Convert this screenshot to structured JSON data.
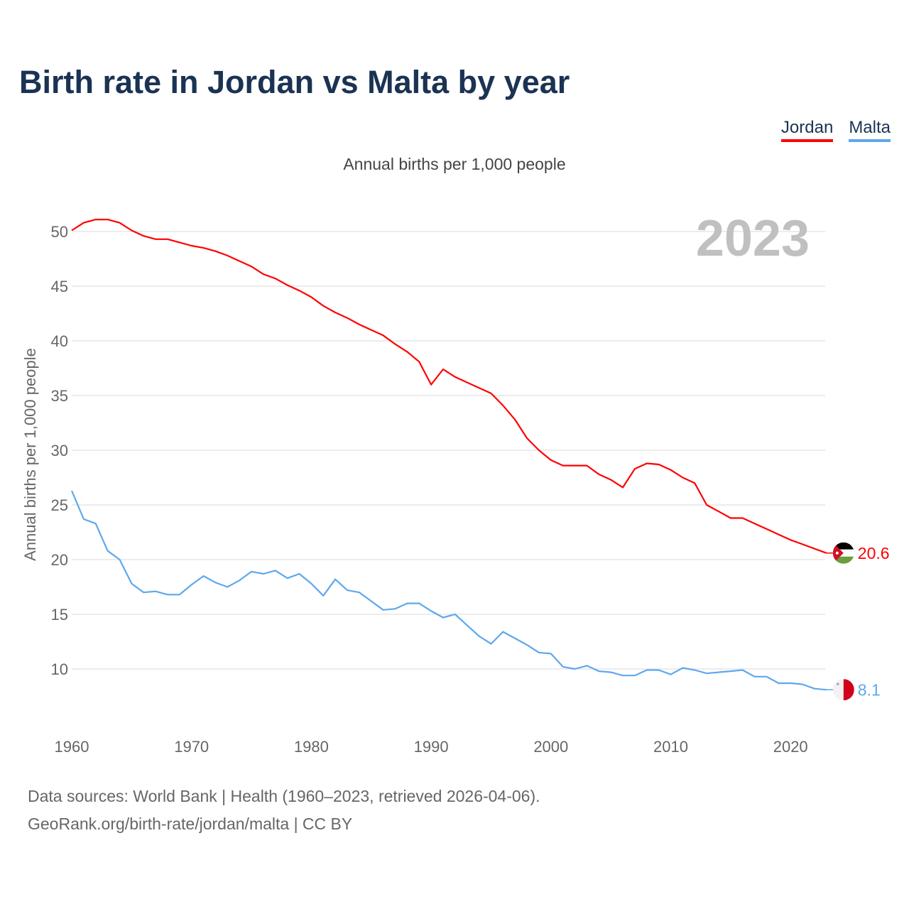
{
  "chart_data": {
    "type": "line",
    "title": "Birth rate in Jordan vs Malta by year",
    "subtitle": "Annual births per 1,000 people",
    "ylabel": "Annual births per 1,000 people",
    "xlabel": "",
    "year_label": "2023",
    "xlim": [
      1960,
      2023
    ],
    "ylim": [
      5,
      52
    ],
    "yticks": [
      10,
      15,
      20,
      25,
      30,
      35,
      40,
      45,
      50
    ],
    "xticks": [
      1960,
      1970,
      1980,
      1990,
      2000,
      2010,
      2020
    ],
    "grid": true,
    "legend_position": "top-right",
    "x": [
      1960,
      1961,
      1962,
      1963,
      1964,
      1965,
      1966,
      1967,
      1968,
      1969,
      1970,
      1971,
      1972,
      1973,
      1974,
      1975,
      1976,
      1977,
      1978,
      1979,
      1980,
      1981,
      1982,
      1983,
      1984,
      1985,
      1986,
      1987,
      1988,
      1989,
      1990,
      1991,
      1992,
      1993,
      1994,
      1995,
      1996,
      1997,
      1998,
      1999,
      2000,
      2001,
      2002,
      2003,
      2004,
      2005,
      2006,
      2007,
      2008,
      2009,
      2010,
      2011,
      2012,
      2013,
      2014,
      2015,
      2016,
      2017,
      2018,
      2019,
      2020,
      2021,
      2022,
      2023
    ],
    "series": [
      {
        "name": "Jordan",
        "color": "#ff0000",
        "end_label": "20.6",
        "values": [
          50.1,
          50.8,
          51.1,
          51.1,
          50.8,
          50.1,
          49.6,
          49.3,
          49.3,
          49.0,
          48.7,
          48.5,
          48.2,
          47.8,
          47.3,
          46.8,
          46.1,
          45.7,
          45.1,
          44.6,
          44.0,
          43.2,
          42.6,
          42.1,
          41.5,
          41.0,
          40.5,
          39.7,
          39.0,
          38.1,
          36.0,
          37.4,
          36.7,
          36.2,
          35.7,
          35.2,
          34.1,
          32.8,
          31.1,
          30.0,
          29.1,
          28.6,
          28.6,
          28.6,
          27.8,
          27.3,
          26.6,
          28.3,
          28.8,
          28.7,
          28.2,
          27.5,
          27.0,
          25.0,
          24.4,
          23.8,
          23.8,
          23.3,
          22.8,
          22.3,
          21.8,
          21.4,
          21.0,
          20.6
        ]
      },
      {
        "name": "Malta",
        "color": "#5ea8ec",
        "end_label": "8.1",
        "values": [
          26.3,
          23.7,
          23.3,
          20.8,
          20.0,
          17.8,
          17.0,
          17.1,
          16.8,
          16.8,
          17.7,
          18.5,
          17.9,
          17.5,
          18.1,
          18.9,
          18.7,
          19.0,
          18.3,
          18.7,
          17.8,
          16.7,
          18.2,
          17.2,
          17.0,
          16.2,
          15.4,
          15.5,
          16.0,
          16.0,
          15.3,
          14.7,
          15.0,
          14.0,
          13.0,
          12.3,
          13.4,
          12.8,
          12.2,
          11.5,
          11.4,
          10.2,
          10.0,
          10.3,
          9.8,
          9.7,
          9.4,
          9.4,
          9.9,
          9.9,
          9.5,
          10.1,
          9.9,
          9.6,
          9.7,
          9.8,
          9.9,
          9.3,
          9.3,
          8.7,
          8.7,
          8.6,
          8.2,
          8.1
        ]
      }
    ]
  },
  "footer": {
    "line1": "Data sources: World Bank | Health (1960–2023, retrieved 2026-04-06).",
    "line2": "GeoRank.org/birth-rate/jordan/malta | CC BY"
  }
}
